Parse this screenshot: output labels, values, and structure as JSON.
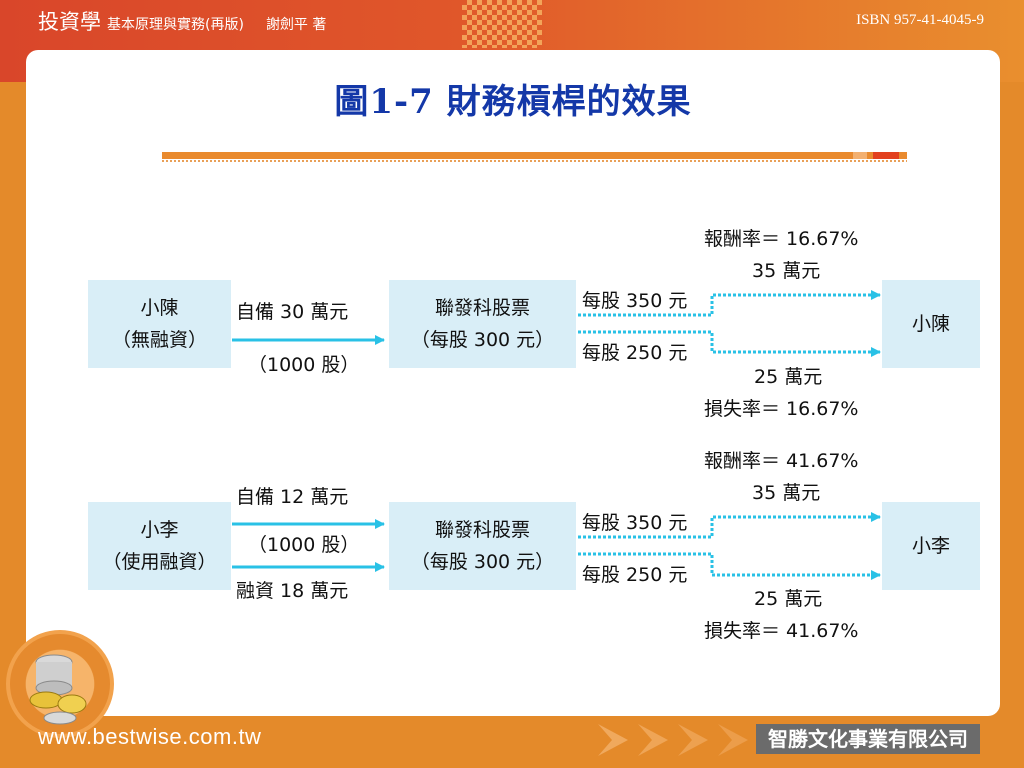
{
  "header": {
    "brand": "投資學",
    "subtitle": "基本原理與實務(再版)",
    "author": "謝劍平 著",
    "isbn": "ISBN 957-41-4045-9"
  },
  "slide": {
    "title": "圖1-7 財務槓桿的效果"
  },
  "diagram": {
    "top": {
      "investor_line1": "小陳",
      "investor_line2": "（無融資）",
      "fund_label": "自備 30 萬元",
      "shares_label": "（1000 股）",
      "stock_line1": "聯發科股票",
      "stock_line2": "（每股 300 元）",
      "up_price": "每股 350 元",
      "down_price": "每股 250 元",
      "gain_rate": "報酬率＝ 16.67%",
      "gain_amount": "35 萬元",
      "loss_amount": "25 萬元",
      "loss_rate": "損失率＝ 16.67%",
      "result": "小陳"
    },
    "bottom": {
      "investor_line1": "小李",
      "investor_line2": "（使用融資）",
      "fund_label": "自備 12 萬元",
      "shares_label": "（1000 股）",
      "loan_label": "融資 18 萬元",
      "stock_line1": "聯發科股票",
      "stock_line2": "（每股 300 元）",
      "up_price": "每股 350 元",
      "down_price": "每股 250 元",
      "gain_rate": "報酬率＝ 41.67%",
      "gain_amount": "35 萬元",
      "loss_amount": "25 萬元",
      "loss_rate": "損失率＝ 41.67%",
      "result": "小李"
    }
  },
  "footer": {
    "url": "www.bestwise.com.tw",
    "company": "智勝文化事業有限公司"
  },
  "colors": {
    "arrow": "#29c1e6",
    "box": "#d9eef7",
    "title": "#1438a8",
    "accent": "#e48a2a"
  }
}
